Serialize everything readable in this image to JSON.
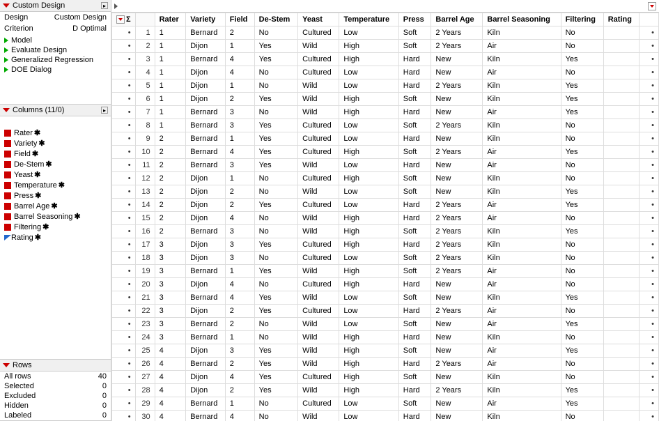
{
  "panel": {
    "custom_design_title": "Custom Design",
    "design_label": "Design",
    "design_value": "Custom Design",
    "criterion_label": "Criterion",
    "criterion_value": "D Optimal",
    "tree": [
      "Model",
      "Evaluate Design",
      "Generalized Regression",
      "DOE Dialog"
    ]
  },
  "columns_header": "Columns (11/0)",
  "columns": [
    {
      "name": "Rater",
      "type": "cat"
    },
    {
      "name": "Variety",
      "type": "cat"
    },
    {
      "name": "Field",
      "type": "cat"
    },
    {
      "name": "De-Stem",
      "type": "cat"
    },
    {
      "name": "Yeast",
      "type": "cat"
    },
    {
      "name": "Temperature",
      "type": "cat"
    },
    {
      "name": "Press",
      "type": "cat"
    },
    {
      "name": "Barrel Age",
      "type": "cat"
    },
    {
      "name": "Barrel Seasoning",
      "type": "cat"
    },
    {
      "name": "Filtering",
      "type": "cat"
    },
    {
      "name": "Rating",
      "type": "cont"
    }
  ],
  "rows_header": "Rows",
  "rows_stats": [
    {
      "label": "All rows",
      "value": "40"
    },
    {
      "label": "Selected",
      "value": "0"
    },
    {
      "label": "Excluded",
      "value": "0"
    },
    {
      "label": "Hidden",
      "value": "0"
    },
    {
      "label": "Labeled",
      "value": "0"
    }
  ],
  "table": {
    "headers": [
      "Rater",
      "Variety",
      "Field",
      "De-Stem",
      "Yeast",
      "Temperature",
      "Press",
      "Barrel Age",
      "Barrel Seasoning",
      "Filtering",
      "Rating"
    ],
    "rows": [
      [
        "1",
        "Bernard",
        "2",
        "No",
        "Cultured",
        "Low",
        "Soft",
        "2 Years",
        "Kiln",
        "No",
        ""
      ],
      [
        "1",
        "Dijon",
        "1",
        "Yes",
        "Wild",
        "High",
        "Soft",
        "2 Years",
        "Air",
        "No",
        ""
      ],
      [
        "1",
        "Bernard",
        "4",
        "Yes",
        "Cultured",
        "High",
        "Hard",
        "New",
        "Kiln",
        "Yes",
        ""
      ],
      [
        "1",
        "Dijon",
        "4",
        "No",
        "Cultured",
        "Low",
        "Hard",
        "New",
        "Air",
        "No",
        ""
      ],
      [
        "1",
        "Dijon",
        "1",
        "No",
        "Wild",
        "Low",
        "Hard",
        "2 Years",
        "Kiln",
        "Yes",
        ""
      ],
      [
        "1",
        "Dijon",
        "2",
        "Yes",
        "Wild",
        "High",
        "Soft",
        "New",
        "Kiln",
        "Yes",
        ""
      ],
      [
        "1",
        "Bernard",
        "3",
        "No",
        "Wild",
        "High",
        "Hard",
        "New",
        "Air",
        "Yes",
        ""
      ],
      [
        "1",
        "Bernard",
        "3",
        "Yes",
        "Cultured",
        "Low",
        "Soft",
        "2 Years",
        "Kiln",
        "No",
        ""
      ],
      [
        "2",
        "Bernard",
        "1",
        "Yes",
        "Cultured",
        "Low",
        "Hard",
        "New",
        "Kiln",
        "No",
        ""
      ],
      [
        "2",
        "Bernard",
        "4",
        "Yes",
        "Cultured",
        "High",
        "Soft",
        "2 Years",
        "Air",
        "Yes",
        ""
      ],
      [
        "2",
        "Bernard",
        "3",
        "Yes",
        "Wild",
        "Low",
        "Hard",
        "New",
        "Air",
        "No",
        ""
      ],
      [
        "2",
        "Dijon",
        "1",
        "No",
        "Cultured",
        "High",
        "Soft",
        "New",
        "Kiln",
        "No",
        ""
      ],
      [
        "2",
        "Dijon",
        "2",
        "No",
        "Wild",
        "Low",
        "Soft",
        "New",
        "Kiln",
        "Yes",
        ""
      ],
      [
        "2",
        "Dijon",
        "2",
        "Yes",
        "Cultured",
        "Low",
        "Hard",
        "2 Years",
        "Air",
        "Yes",
        ""
      ],
      [
        "2",
        "Dijon",
        "4",
        "No",
        "Wild",
        "High",
        "Hard",
        "2 Years",
        "Air",
        "No",
        ""
      ],
      [
        "2",
        "Bernard",
        "3",
        "No",
        "Wild",
        "High",
        "Soft",
        "2 Years",
        "Kiln",
        "Yes",
        ""
      ],
      [
        "3",
        "Dijon",
        "3",
        "Yes",
        "Cultured",
        "High",
        "Hard",
        "2 Years",
        "Kiln",
        "No",
        ""
      ],
      [
        "3",
        "Dijon",
        "3",
        "No",
        "Cultured",
        "Low",
        "Soft",
        "2 Years",
        "Kiln",
        "No",
        ""
      ],
      [
        "3",
        "Bernard",
        "1",
        "Yes",
        "Wild",
        "High",
        "Soft",
        "2 Years",
        "Air",
        "No",
        ""
      ],
      [
        "3",
        "Dijon",
        "4",
        "No",
        "Cultured",
        "High",
        "Hard",
        "New",
        "Air",
        "No",
        ""
      ],
      [
        "3",
        "Bernard",
        "4",
        "Yes",
        "Wild",
        "Low",
        "Soft",
        "New",
        "Kiln",
        "Yes",
        ""
      ],
      [
        "3",
        "Dijon",
        "2",
        "Yes",
        "Cultured",
        "Low",
        "Hard",
        "2 Years",
        "Air",
        "No",
        ""
      ],
      [
        "3",
        "Bernard",
        "2",
        "No",
        "Wild",
        "Low",
        "Soft",
        "New",
        "Air",
        "Yes",
        ""
      ],
      [
        "3",
        "Bernard",
        "1",
        "No",
        "Wild",
        "High",
        "Hard",
        "New",
        "Kiln",
        "No",
        ""
      ],
      [
        "4",
        "Dijon",
        "3",
        "Yes",
        "Wild",
        "High",
        "Soft",
        "New",
        "Air",
        "Yes",
        ""
      ],
      [
        "4",
        "Bernard",
        "2",
        "Yes",
        "Wild",
        "High",
        "Hard",
        "2 Years",
        "Air",
        "No",
        ""
      ],
      [
        "4",
        "Dijon",
        "4",
        "Yes",
        "Cultured",
        "High",
        "Soft",
        "New",
        "Kiln",
        "No",
        ""
      ],
      [
        "4",
        "Dijon",
        "2",
        "Yes",
        "Wild",
        "High",
        "Hard",
        "2 Years",
        "Kiln",
        "Yes",
        ""
      ],
      [
        "4",
        "Bernard",
        "1",
        "No",
        "Cultured",
        "Low",
        "Soft",
        "New",
        "Air",
        "Yes",
        ""
      ],
      [
        "4",
        "Bernard",
        "4",
        "No",
        "Wild",
        "Low",
        "Hard",
        "New",
        "Kiln",
        "No",
        ""
      ]
    ]
  }
}
